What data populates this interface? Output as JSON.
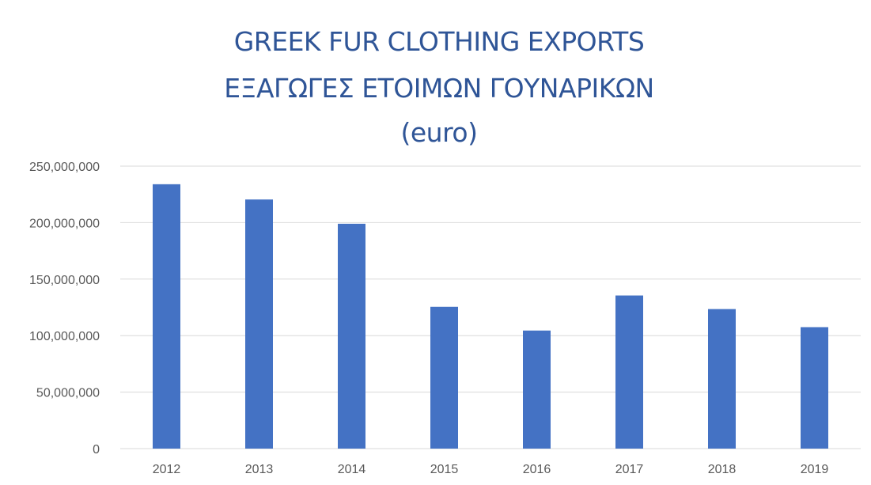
{
  "chart_data": {
    "type": "bar",
    "title_lines": [
      "GREEK FUR CLOTHING EXPORTS",
      "ΕΞΑΓΩΓΕΣ ΕΤΟΙΜΩΝ ΓΟΥΝΑΡΙΚΩΝ",
      "(euro)"
    ],
    "categories": [
      "2012",
      "2013",
      "2014",
      "2015",
      "2016",
      "2017",
      "2018",
      "2019"
    ],
    "series": [
      {
        "values": [
          234000000,
          220500000,
          199000000,
          125500000,
          104500000,
          135500000,
          123500000,
          107500000
        ]
      }
    ],
    "ylim": [
      0,
      250000000
    ],
    "yticks": [
      0,
      50000000,
      100000000,
      150000000,
      200000000,
      250000000
    ],
    "ytick_labels": [
      "0",
      "50,000,000",
      "100,000,000",
      "150,000,000",
      "200,000,000",
      "250,000,000"
    ],
    "xlabel": "",
    "ylabel": "",
    "grid": true,
    "legend": "none",
    "colors": {
      "bar": "#4472c4",
      "title": "#2f5597",
      "grid": "#d9d9d9",
      "tick_text": "#595959"
    }
  }
}
